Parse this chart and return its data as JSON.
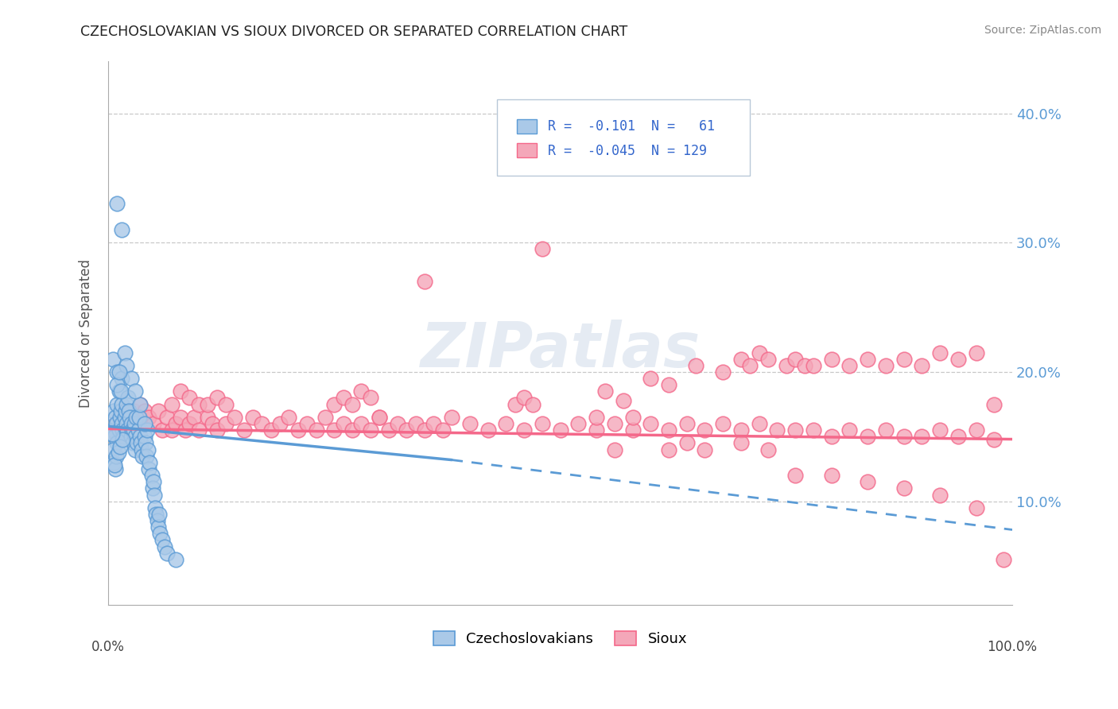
{
  "title": "CZECHOSLOVAKIAN VS SIOUX DIVORCED OR SEPARATED CORRELATION CHART",
  "source": "Source: ZipAtlas.com",
  "ylabel": "Divorced or Separated",
  "ytick_values": [
    0.1,
    0.2,
    0.3,
    0.4
  ],
  "xlim": [
    0.0,
    1.0
  ],
  "ylim": [
    0.02,
    0.44
  ],
  "background_color": "#ffffff",
  "grid_color": "#c8c8c8",
  "blue_color": "#5b9bd5",
  "pink_color": "#f4688a",
  "blue_fill": "#aac9e8",
  "pink_fill": "#f4a7b9",
  "blue_scatter": [
    [
      0.005,
      0.155
    ],
    [
      0.006,
      0.17
    ],
    [
      0.007,
      0.15
    ],
    [
      0.008,
      0.165
    ],
    [
      0.009,
      0.16
    ],
    [
      0.01,
      0.175
    ],
    [
      0.01,
      0.145
    ],
    [
      0.012,
      0.185
    ],
    [
      0.012,
      0.155
    ],
    [
      0.013,
      0.165
    ],
    [
      0.014,
      0.17
    ],
    [
      0.015,
      0.175
    ],
    [
      0.015,
      0.16
    ],
    [
      0.016,
      0.155
    ],
    [
      0.017,
      0.15
    ],
    [
      0.018,
      0.165
    ],
    [
      0.019,
      0.17
    ],
    [
      0.02,
      0.16
    ],
    [
      0.02,
      0.175
    ],
    [
      0.021,
      0.155
    ],
    [
      0.022,
      0.18
    ],
    [
      0.023,
      0.17
    ],
    [
      0.024,
      0.165
    ],
    [
      0.025,
      0.16
    ],
    [
      0.025,
      0.15
    ],
    [
      0.026,
      0.155
    ],
    [
      0.027,
      0.145
    ],
    [
      0.028,
      0.155
    ],
    [
      0.029,
      0.16
    ],
    [
      0.03,
      0.15
    ],
    [
      0.03,
      0.14
    ],
    [
      0.031,
      0.165
    ],
    [
      0.032,
      0.145
    ],
    [
      0.033,
      0.155
    ],
    [
      0.034,
      0.165
    ],
    [
      0.035,
      0.15
    ],
    [
      0.036,
      0.145
    ],
    [
      0.037,
      0.14
    ],
    [
      0.038,
      0.135
    ],
    [
      0.04,
      0.15
    ],
    [
      0.041,
      0.145
    ],
    [
      0.042,
      0.135
    ],
    [
      0.043,
      0.155
    ],
    [
      0.044,
      0.14
    ],
    [
      0.045,
      0.125
    ],
    [
      0.046,
      0.13
    ],
    [
      0.048,
      0.12
    ],
    [
      0.049,
      0.11
    ],
    [
      0.05,
      0.115
    ],
    [
      0.051,
      0.105
    ],
    [
      0.052,
      0.095
    ],
    [
      0.053,
      0.09
    ],
    [
      0.054,
      0.085
    ],
    [
      0.055,
      0.08
    ],
    [
      0.056,
      0.09
    ],
    [
      0.057,
      0.075
    ],
    [
      0.06,
      0.07
    ],
    [
      0.062,
      0.065
    ],
    [
      0.065,
      0.06
    ],
    [
      0.075,
      0.055
    ],
    [
      0.01,
      0.33
    ],
    [
      0.015,
      0.31
    ],
    [
      0.005,
      0.21
    ],
    [
      0.01,
      0.2
    ],
    [
      0.015,
      0.195
    ],
    [
      0.018,
      0.215
    ],
    [
      0.02,
      0.205
    ],
    [
      0.025,
      0.195
    ],
    [
      0.01,
      0.19
    ],
    [
      0.012,
      0.2
    ],
    [
      0.014,
      0.185
    ],
    [
      0.04,
      0.16
    ],
    [
      0.035,
      0.175
    ],
    [
      0.03,
      0.185
    ],
    [
      0.005,
      0.14
    ],
    [
      0.006,
      0.13
    ],
    [
      0.008,
      0.125
    ],
    [
      0.009,
      0.135
    ],
    [
      0.007,
      0.128
    ],
    [
      0.011,
      0.138
    ],
    [
      0.013,
      0.142
    ],
    [
      0.016,
      0.148
    ],
    [
      0.004,
      0.152
    ]
  ],
  "pink_scatter": [
    [
      0.005,
      0.155
    ],
    [
      0.008,
      0.16
    ],
    [
      0.01,
      0.15
    ],
    [
      0.012,
      0.165
    ],
    [
      0.015,
      0.155
    ],
    [
      0.018,
      0.17
    ],
    [
      0.02,
      0.16
    ],
    [
      0.022,
      0.165
    ],
    [
      0.025,
      0.155
    ],
    [
      0.028,
      0.17
    ],
    [
      0.03,
      0.165
    ],
    [
      0.035,
      0.175
    ],
    [
      0.038,
      0.16
    ],
    [
      0.04,
      0.17
    ],
    [
      0.045,
      0.165
    ],
    [
      0.05,
      0.16
    ],
    [
      0.055,
      0.17
    ],
    [
      0.06,
      0.155
    ],
    [
      0.065,
      0.165
    ],
    [
      0.07,
      0.155
    ],
    [
      0.075,
      0.16
    ],
    [
      0.08,
      0.165
    ],
    [
      0.085,
      0.155
    ],
    [
      0.09,
      0.16
    ],
    [
      0.095,
      0.165
    ],
    [
      0.1,
      0.155
    ],
    [
      0.11,
      0.165
    ],
    [
      0.115,
      0.16
    ],
    [
      0.12,
      0.155
    ],
    [
      0.13,
      0.16
    ],
    [
      0.14,
      0.165
    ],
    [
      0.15,
      0.155
    ],
    [
      0.16,
      0.165
    ],
    [
      0.17,
      0.16
    ],
    [
      0.18,
      0.155
    ],
    [
      0.19,
      0.16
    ],
    [
      0.2,
      0.165
    ],
    [
      0.21,
      0.155
    ],
    [
      0.22,
      0.16
    ],
    [
      0.23,
      0.155
    ],
    [
      0.24,
      0.165
    ],
    [
      0.25,
      0.155
    ],
    [
      0.26,
      0.16
    ],
    [
      0.27,
      0.155
    ],
    [
      0.28,
      0.16
    ],
    [
      0.29,
      0.155
    ],
    [
      0.3,
      0.165
    ],
    [
      0.31,
      0.155
    ],
    [
      0.32,
      0.16
    ],
    [
      0.33,
      0.155
    ],
    [
      0.34,
      0.16
    ],
    [
      0.35,
      0.155
    ],
    [
      0.36,
      0.16
    ],
    [
      0.37,
      0.155
    ],
    [
      0.38,
      0.165
    ],
    [
      0.4,
      0.16
    ],
    [
      0.42,
      0.155
    ],
    [
      0.44,
      0.16
    ],
    [
      0.46,
      0.155
    ],
    [
      0.48,
      0.16
    ],
    [
      0.5,
      0.155
    ],
    [
      0.52,
      0.16
    ],
    [
      0.54,
      0.155
    ],
    [
      0.56,
      0.16
    ],
    [
      0.58,
      0.155
    ],
    [
      0.6,
      0.16
    ],
    [
      0.62,
      0.155
    ],
    [
      0.64,
      0.16
    ],
    [
      0.66,
      0.155
    ],
    [
      0.68,
      0.16
    ],
    [
      0.7,
      0.155
    ],
    [
      0.72,
      0.16
    ],
    [
      0.74,
      0.155
    ],
    [
      0.76,
      0.155
    ],
    [
      0.78,
      0.155
    ],
    [
      0.8,
      0.15
    ],
    [
      0.82,
      0.155
    ],
    [
      0.84,
      0.15
    ],
    [
      0.86,
      0.155
    ],
    [
      0.88,
      0.15
    ],
    [
      0.9,
      0.15
    ],
    [
      0.92,
      0.155
    ],
    [
      0.94,
      0.15
    ],
    [
      0.96,
      0.155
    ],
    [
      0.98,
      0.148
    ],
    [
      0.03,
      0.155
    ],
    [
      0.025,
      0.165
    ],
    [
      0.022,
      0.158
    ],
    [
      0.07,
      0.175
    ],
    [
      0.08,
      0.185
    ],
    [
      0.09,
      0.18
    ],
    [
      0.1,
      0.175
    ],
    [
      0.11,
      0.175
    ],
    [
      0.12,
      0.18
    ],
    [
      0.13,
      0.175
    ],
    [
      0.25,
      0.175
    ],
    [
      0.26,
      0.18
    ],
    [
      0.27,
      0.175
    ],
    [
      0.28,
      0.185
    ],
    [
      0.29,
      0.18
    ],
    [
      0.45,
      0.175
    ],
    [
      0.46,
      0.18
    ],
    [
      0.47,
      0.175
    ],
    [
      0.55,
      0.185
    ],
    [
      0.57,
      0.178
    ],
    [
      0.6,
      0.195
    ],
    [
      0.62,
      0.19
    ],
    [
      0.65,
      0.205
    ],
    [
      0.68,
      0.2
    ],
    [
      0.7,
      0.21
    ],
    [
      0.71,
      0.205
    ],
    [
      0.72,
      0.215
    ],
    [
      0.73,
      0.21
    ],
    [
      0.75,
      0.205
    ],
    [
      0.76,
      0.21
    ],
    [
      0.77,
      0.205
    ],
    [
      0.78,
      0.205
    ],
    [
      0.8,
      0.21
    ],
    [
      0.82,
      0.205
    ],
    [
      0.84,
      0.21
    ],
    [
      0.86,
      0.205
    ],
    [
      0.88,
      0.21
    ],
    [
      0.9,
      0.205
    ],
    [
      0.92,
      0.215
    ],
    [
      0.94,
      0.21
    ],
    [
      0.96,
      0.215
    ],
    [
      0.98,
      0.175
    ],
    [
      0.99,
      0.055
    ],
    [
      0.35,
      0.27
    ],
    [
      0.48,
      0.295
    ],
    [
      0.3,
      0.165
    ],
    [
      0.54,
      0.165
    ],
    [
      0.58,
      0.165
    ],
    [
      0.56,
      0.14
    ],
    [
      0.62,
      0.14
    ],
    [
      0.64,
      0.145
    ],
    [
      0.66,
      0.14
    ],
    [
      0.7,
      0.145
    ],
    [
      0.73,
      0.14
    ],
    [
      0.76,
      0.12
    ],
    [
      0.8,
      0.12
    ],
    [
      0.84,
      0.115
    ],
    [
      0.88,
      0.11
    ],
    [
      0.92,
      0.105
    ],
    [
      0.96,
      0.095
    ]
  ],
  "blue_line": {
    "x0": 0.0,
    "y0": 0.158,
    "x1": 0.38,
    "y1": 0.132
  },
  "pink_line": {
    "x0": 0.0,
    "y0": 0.156,
    "x1": 1.0,
    "y1": 0.148
  },
  "blue_dash_line": {
    "x0": 0.38,
    "y0": 0.132,
    "x1": 1.0,
    "y1": 0.078
  }
}
